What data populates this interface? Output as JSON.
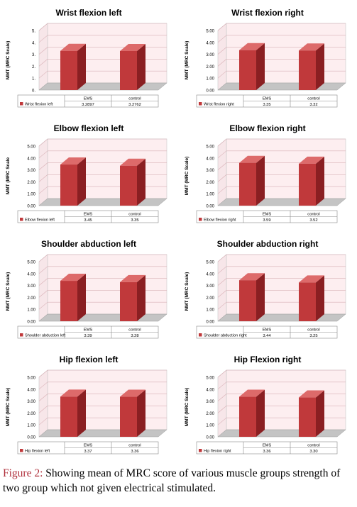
{
  "colors": {
    "bar_front": "#c0393b",
    "bar_side": "#8a1f22",
    "bar_top": "#dd6a6a",
    "back_wall": "#fdeef0",
    "gridline": "#d8b0b6",
    "floor": "#c4c4c4",
    "caption_label": "#b0303c"
  },
  "chart_data": [
    {
      "type": "bar",
      "title": "Wrist flexion left",
      "ylabel": "MMT (MRC Scale)",
      "yticks": [
        "0.",
        "1.",
        "2.",
        "3.",
        "4.",
        "5."
      ],
      "ylim": [
        0,
        5
      ],
      "categories": [
        "EMS",
        "control"
      ],
      "series": [
        {
          "name": "Wrist flexion left",
          "values": [
            3.2897,
            3.2762
          ],
          "labels": [
            "3.2897",
            "3.2762"
          ]
        }
      ]
    },
    {
      "type": "bar",
      "title": "Wrist flexion right",
      "ylabel": "MMT (MRC Scale)",
      "yticks": [
        "0.00",
        "1.00",
        "2.00",
        "3.00",
        "4.00",
        "5.00"
      ],
      "ylim": [
        0,
        5
      ],
      "categories": [
        "EMS",
        "control"
      ],
      "series": [
        {
          "name": "Wrist flexion right",
          "values": [
            3.35,
            3.32
          ],
          "labels": [
            "3.35",
            "3.32"
          ]
        }
      ]
    },
    {
      "type": "bar",
      "title": "Elbow flexion left",
      "ylabel": "MMT (MRC Scale",
      "yticks": [
        "0.00",
        "1.00",
        "2.00",
        "3.00",
        "4.00",
        "5.00"
      ],
      "ylim": [
        0,
        5
      ],
      "categories": [
        "EMS",
        "control"
      ],
      "series": [
        {
          "name": "Elbow flexion left",
          "values": [
            3.45,
            3.35
          ],
          "labels": [
            "3.45",
            "3.35"
          ]
        }
      ]
    },
    {
      "type": "bar",
      "title": "Elbow flexion right",
      "ylabel": "MMT (MRC Scale)",
      "yticks": [
        "0.00",
        "1.00",
        "2.00",
        "3.00",
        "4.00",
        "5.00"
      ],
      "ylim": [
        0,
        5
      ],
      "categories": [
        "EMS",
        "control"
      ],
      "series": [
        {
          "name": "Elbow flexion right",
          "values": [
            3.59,
            3.52
          ],
          "labels": [
            "3.59",
            "3.52"
          ]
        }
      ]
    },
    {
      "type": "bar",
      "title": "Shoulder abduction left",
      "ylabel": "MMT (MRC Scale)",
      "yticks": [
        "0.00",
        "1.00",
        "2.00",
        "3.00",
        "4.00",
        "5.00"
      ],
      "ylim": [
        0,
        5
      ],
      "categories": [
        "EMS",
        "control"
      ],
      "series": [
        {
          "name": "Shoulder abduction left",
          "values": [
            3.39,
            3.28
          ],
          "labels": [
            "3.39",
            "3.28"
          ]
        }
      ]
    },
    {
      "type": "bar",
      "title": "Shoulder abduction right",
      "ylabel": "MMT (MRC Scale)",
      "yticks": [
        "0.00",
        "1.00",
        "2.00",
        "3.00",
        "4.00",
        "5.00"
      ],
      "ylim": [
        0,
        5
      ],
      "categories": [
        "EMS",
        "control"
      ],
      "series": [
        {
          "name": "Shoulder abduction right",
          "values": [
            3.44,
            3.25
          ],
          "labels": [
            "3.44",
            "3.25"
          ]
        }
      ]
    },
    {
      "type": "bar",
      "title": "Hip flexion left",
      "ylabel": "MMT (MRC Scale)",
      "yticks": [
        "0.00",
        "1.00",
        "2.00",
        "3.00",
        "4.00",
        "5.00"
      ],
      "ylim": [
        0,
        5
      ],
      "categories": [
        "EMS",
        "control"
      ],
      "series": [
        {
          "name": "Hip flexion left",
          "values": [
            3.37,
            3.36
          ],
          "labels": [
            "3.37",
            "3.36"
          ]
        }
      ]
    },
    {
      "type": "bar",
      "title": "Hip Flexion right",
      "ylabel": "MMT (MRC Scale)",
      "yticks": [
        "0.00",
        "1.00",
        "2.00",
        "3.00",
        "4.00",
        "5.00"
      ],
      "ylim": [
        0,
        5
      ],
      "categories": [
        "EMS",
        "control"
      ],
      "series": [
        {
          "name": "Hip flexion right",
          "values": [
            3.36,
            3.3
          ],
          "labels": [
            "3.36",
            "3.30"
          ]
        }
      ]
    }
  ],
  "caption": {
    "label": "Figure 2:",
    "text": " Showing mean of MRC score of various muscle groups strength of two group which not given electrical stimulated."
  }
}
